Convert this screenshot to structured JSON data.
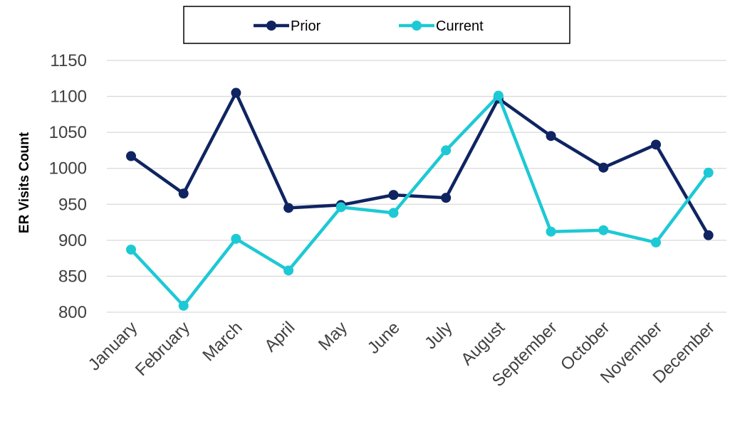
{
  "chart_data": {
    "type": "line",
    "title": "",
    "xlabel": "",
    "ylabel": "ER Visits Count",
    "categories": [
      "January",
      "February",
      "March",
      "April",
      "May",
      "June",
      "July",
      "August",
      "September",
      "October",
      "November",
      "December"
    ],
    "series": [
      {
        "name": "Prior",
        "color": "#0f2461",
        "values": [
          1017,
          965,
          1105,
          945,
          949,
          963,
          959,
          1097,
          1045,
          1001,
          1033,
          907
        ]
      },
      {
        "name": "Current",
        "color": "#1dc9d4",
        "values": [
          887,
          809,
          902,
          858,
          946,
          938,
          1025,
          1101,
          912,
          914,
          897,
          994
        ]
      }
    ],
    "ylim": [
      800,
      1150
    ],
    "yticks": [
      800,
      850,
      900,
      950,
      1000,
      1050,
      1100,
      1150
    ],
    "grid": true,
    "legend_position": "top"
  }
}
